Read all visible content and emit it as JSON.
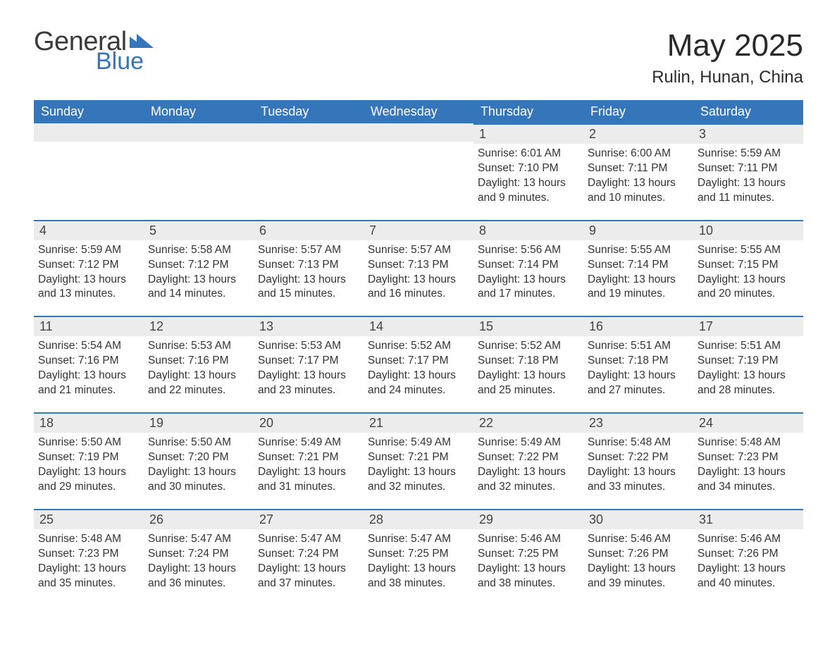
{
  "brand": {
    "general": "General",
    "blue": "Blue"
  },
  "title": "May 2025",
  "location": "Rulin, Hunan, China",
  "colors": {
    "header_bg": "#3576ba",
    "header_text": "#ffffff",
    "daynum_bg": "#ececec",
    "daynum_border": "#3576ba",
    "body_text": "#333333",
    "page_bg": "#ffffff"
  },
  "weekdays": [
    "Sunday",
    "Monday",
    "Tuesday",
    "Wednesday",
    "Thursday",
    "Friday",
    "Saturday"
  ],
  "weeks": [
    [
      null,
      null,
      null,
      null,
      {
        "n": "1",
        "sr": "6:01 AM",
        "ss": "7:10 PM",
        "dl": "13 hours and 9 minutes."
      },
      {
        "n": "2",
        "sr": "6:00 AM",
        "ss": "7:11 PM",
        "dl": "13 hours and 10 minutes."
      },
      {
        "n": "3",
        "sr": "5:59 AM",
        "ss": "7:11 PM",
        "dl": "13 hours and 11 minutes."
      }
    ],
    [
      {
        "n": "4",
        "sr": "5:59 AM",
        "ss": "7:12 PM",
        "dl": "13 hours and 13 minutes."
      },
      {
        "n": "5",
        "sr": "5:58 AM",
        "ss": "7:12 PM",
        "dl": "13 hours and 14 minutes."
      },
      {
        "n": "6",
        "sr": "5:57 AM",
        "ss": "7:13 PM",
        "dl": "13 hours and 15 minutes."
      },
      {
        "n": "7",
        "sr": "5:57 AM",
        "ss": "7:13 PM",
        "dl": "13 hours and 16 minutes."
      },
      {
        "n": "8",
        "sr": "5:56 AM",
        "ss": "7:14 PM",
        "dl": "13 hours and 17 minutes."
      },
      {
        "n": "9",
        "sr": "5:55 AM",
        "ss": "7:14 PM",
        "dl": "13 hours and 19 minutes."
      },
      {
        "n": "10",
        "sr": "5:55 AM",
        "ss": "7:15 PM",
        "dl": "13 hours and 20 minutes."
      }
    ],
    [
      {
        "n": "11",
        "sr": "5:54 AM",
        "ss": "7:16 PM",
        "dl": "13 hours and 21 minutes."
      },
      {
        "n": "12",
        "sr": "5:53 AM",
        "ss": "7:16 PM",
        "dl": "13 hours and 22 minutes."
      },
      {
        "n": "13",
        "sr": "5:53 AM",
        "ss": "7:17 PM",
        "dl": "13 hours and 23 minutes."
      },
      {
        "n": "14",
        "sr": "5:52 AM",
        "ss": "7:17 PM",
        "dl": "13 hours and 24 minutes."
      },
      {
        "n": "15",
        "sr": "5:52 AM",
        "ss": "7:18 PM",
        "dl": "13 hours and 25 minutes."
      },
      {
        "n": "16",
        "sr": "5:51 AM",
        "ss": "7:18 PM",
        "dl": "13 hours and 27 minutes."
      },
      {
        "n": "17",
        "sr": "5:51 AM",
        "ss": "7:19 PM",
        "dl": "13 hours and 28 minutes."
      }
    ],
    [
      {
        "n": "18",
        "sr": "5:50 AM",
        "ss": "7:19 PM",
        "dl": "13 hours and 29 minutes."
      },
      {
        "n": "19",
        "sr": "5:50 AM",
        "ss": "7:20 PM",
        "dl": "13 hours and 30 minutes."
      },
      {
        "n": "20",
        "sr": "5:49 AM",
        "ss": "7:21 PM",
        "dl": "13 hours and 31 minutes."
      },
      {
        "n": "21",
        "sr": "5:49 AM",
        "ss": "7:21 PM",
        "dl": "13 hours and 32 minutes."
      },
      {
        "n": "22",
        "sr": "5:49 AM",
        "ss": "7:22 PM",
        "dl": "13 hours and 32 minutes."
      },
      {
        "n": "23",
        "sr": "5:48 AM",
        "ss": "7:22 PM",
        "dl": "13 hours and 33 minutes."
      },
      {
        "n": "24",
        "sr": "5:48 AM",
        "ss": "7:23 PM",
        "dl": "13 hours and 34 minutes."
      }
    ],
    [
      {
        "n": "25",
        "sr": "5:48 AM",
        "ss": "7:23 PM",
        "dl": "13 hours and 35 minutes."
      },
      {
        "n": "26",
        "sr": "5:47 AM",
        "ss": "7:24 PM",
        "dl": "13 hours and 36 minutes."
      },
      {
        "n": "27",
        "sr": "5:47 AM",
        "ss": "7:24 PM",
        "dl": "13 hours and 37 minutes."
      },
      {
        "n": "28",
        "sr": "5:47 AM",
        "ss": "7:25 PM",
        "dl": "13 hours and 38 minutes."
      },
      {
        "n": "29",
        "sr": "5:46 AM",
        "ss": "7:25 PM",
        "dl": "13 hours and 38 minutes."
      },
      {
        "n": "30",
        "sr": "5:46 AM",
        "ss": "7:26 PM",
        "dl": "13 hours and 39 minutes."
      },
      {
        "n": "31",
        "sr": "5:46 AM",
        "ss": "7:26 PM",
        "dl": "13 hours and 40 minutes."
      }
    ]
  ],
  "labels": {
    "sunrise": "Sunrise:",
    "sunset": "Sunset:",
    "daylight": "Daylight:"
  }
}
